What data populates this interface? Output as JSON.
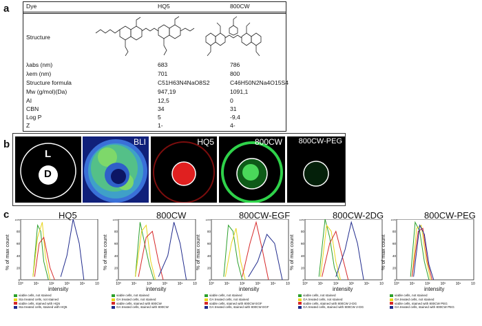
{
  "panel_labels": {
    "a": "a",
    "b": "b",
    "c": "c"
  },
  "table": {
    "headers": {
      "dye": "Dye",
      "col1": "HQ5",
      "col2": "800CW"
    },
    "structure_label": "Structure",
    "rows": [
      {
        "label": "λabs (nm)",
        "hq5": "683",
        "cw": "786"
      },
      {
        "label": "λem (nm)",
        "hq5": "701",
        "cw": "800"
      },
      {
        "label": "Structure formula",
        "hq5": "C51H63N4NaO8S2",
        "cw": "C46H50N2Na4O15S4"
      },
      {
        "label": "Mw (g/mol)(Da)",
        "hq5": "947,19",
        "cw": "1091,1"
      },
      {
        "label": "AI",
        "hq5": "12,5",
        "cw": "0"
      },
      {
        "label": "CBN",
        "hq5": "34",
        "cw": "31"
      },
      {
        "label": "Log P",
        "hq5": "5",
        "cw": "-9,4"
      },
      {
        "label": "Z",
        "hq5": "1-",
        "cw": "4-"
      }
    ]
  },
  "panel_b": {
    "schematic": {
      "outer": "L",
      "inner": "D"
    },
    "titles": [
      "BLI",
      "HQ5",
      "800CW",
      "800CW-PEG"
    ]
  },
  "panel_c": {
    "ylabel": "% of max count",
    "xlabel": "intensity",
    "tick_labels": {
      "y": [
        "0",
        "20",
        "40",
        "60",
        "80",
        "100"
      ],
      "x": [
        "10⁰",
        "10¹",
        "10²",
        "10³",
        "10⁴",
        "10⁵"
      ]
    },
    "plots": [
      {
        "title": "HQ5",
        "legend": [
          "viable cells, not stained",
          "Sta treated cells, not stained",
          "viable cells, stained with HQ5",
          "Sta treated cells, stained with HQ5"
        ]
      },
      {
        "title": "800CW",
        "legend": [
          "viable cells, not stained",
          "GA treated cells, not stained",
          "viable cells, stained with 800CW",
          "GA treated cells, stained with 800CW"
        ]
      },
      {
        "title": "800CW-EGF",
        "legend": [
          "viable cells, not stained",
          "GA treated cells, not stained",
          "viable cells, stained with 800CW EGF",
          "GA treated cells, stained with 800CW EGF"
        ]
      },
      {
        "title": "800CW-2DG",
        "legend": [
          "viable cells, not stained",
          "GA treated cells, not stained",
          "viable cells, stained with 800CW 2-DG",
          "GA treated cells, stained with 800CW 2-DG"
        ]
      },
      {
        "title": "800CW-PEG",
        "legend": [
          "viable cells, not stained",
          "GA treated cells, not stained",
          "viable cells, stained with 800CW PEG",
          "GA treated cells, stained with 800CW PEG"
        ]
      }
    ],
    "legend_colors": [
      "#2ca02c",
      "#e8d51a",
      "#d62728",
      "#1f2a8c"
    ]
  },
  "chart_data": {
    "type": "line",
    "note_axes": "log10 intensity (x), % of max count (y)",
    "ylim": [
      0,
      100
    ],
    "xlim": [
      0,
      5
    ],
    "charts": [
      {
        "title": "HQ5",
        "series": [
          {
            "name": "viable cells, not stained",
            "x": [
              0.8,
              1.1,
              1.3,
              1.5,
              1.8
            ],
            "y": [
              5,
              90,
              80,
              30,
              0
            ]
          },
          {
            "name": "Sta treated cells, not stained",
            "x": [
              0.8,
              1.1,
              1.4,
              1.6,
              1.9
            ],
            "y": [
              5,
              70,
              95,
              40,
              0
            ]
          },
          {
            "name": "viable cells, stained with HQ5",
            "x": [
              0.9,
              1.2,
              1.5,
              1.9,
              2.2
            ],
            "y": [
              5,
              60,
              70,
              20,
              0
            ]
          },
          {
            "name": "Sta treated cells, stained with HQ5",
            "x": [
              2.6,
              3.0,
              3.4,
              3.8,
              4.1
            ],
            "y": [
              5,
              40,
              100,
              60,
              0
            ]
          }
        ]
      },
      {
        "title": "800CW",
        "series": [
          {
            "name": "viable cells, not stained",
            "x": [
              1.1,
              1.4,
              1.7,
              2.0,
              2.3
            ],
            "y": [
              5,
              95,
              60,
              25,
              0
            ]
          },
          {
            "name": "GA treated cells, not stained",
            "x": [
              1.1,
              1.5,
              1.8,
              2.1,
              2.4
            ],
            "y": [
              5,
              80,
              90,
              30,
              0
            ]
          },
          {
            "name": "viable cells, stained with 800CW",
            "x": [
              1.3,
              1.8,
              2.2,
              2.6,
              2.9
            ],
            "y": [
              5,
              70,
              80,
              30,
              0
            ]
          },
          {
            "name": "GA treated cells, stained with 800CW",
            "x": [
              2.6,
              3.2,
              3.6,
              4.0,
              4.4
            ],
            "y": [
              5,
              40,
              95,
              60,
              0
            ]
          }
        ]
      },
      {
        "title": "800CW-EGF",
        "series": [
          {
            "name": "viable cells, not stained",
            "x": [
              0.8,
              1.1,
              1.4,
              1.7,
              2.0
            ],
            "y": [
              5,
              90,
              80,
              30,
              0
            ]
          },
          {
            "name": "GA treated cells, not stained",
            "x": [
              0.9,
              1.3,
              1.6,
              1.9,
              2.2
            ],
            "y": [
              5,
              60,
              85,
              30,
              0
            ]
          },
          {
            "name": "viable cells, stained with 800CW EGF",
            "x": [
              2.0,
              2.5,
              2.9,
              3.3,
              3.7
            ],
            "y": [
              5,
              60,
              95,
              50,
              0
            ]
          },
          {
            "name": "GA treated cells, stained with 800CW EGF",
            "x": [
              2.4,
              3.0,
              3.6,
              4.1,
              4.6
            ],
            "y": [
              5,
              30,
              75,
              60,
              0
            ]
          }
        ]
      },
      {
        "title": "800CW-2DG",
        "series": [
          {
            "name": "viable cells, not stained",
            "x": [
              0.9,
              1.3,
              1.6,
              1.9,
              2.2
            ],
            "y": [
              5,
              100,
              70,
              20,
              0
            ]
          },
          {
            "name": "GA treated cells, not stained",
            "x": [
              1.0,
              1.4,
              1.7,
              2.0,
              2.3
            ],
            "y": [
              5,
              90,
              80,
              30,
              0
            ]
          },
          {
            "name": "viable cells, stained with 800CW 2-DG",
            "x": [
              1.1,
              1.6,
              2.0,
              2.4,
              2.8
            ],
            "y": [
              5,
              60,
              80,
              40,
              0
            ]
          },
          {
            "name": "GA treated cells, stained with 800CW 2-DG",
            "x": [
              2.0,
              2.6,
              3.0,
              3.4,
              3.8
            ],
            "y": [
              5,
              50,
              95,
              60,
              0
            ]
          }
        ]
      },
      {
        "title": "800CW-PEG",
        "series": [
          {
            "name": "viable cells, not stained",
            "x": [
              0.9,
              1.2,
              1.5,
              1.8,
              2.1
            ],
            "y": [
              5,
              95,
              80,
              30,
              0
            ]
          },
          {
            "name": "GA treated cells, not stained",
            "x": [
              1.0,
              1.3,
              1.6,
              1.9,
              2.2
            ],
            "y": [
              5,
              85,
              90,
              35,
              0
            ]
          },
          {
            "name": "viable cells, stained with 800CW PEG",
            "x": [
              1.0,
              1.4,
              1.7,
              2.0,
              2.3
            ],
            "y": [
              5,
              80,
              85,
              30,
              0
            ]
          },
          {
            "name": "GA treated cells, stained with 800CW PEG",
            "x": [
              1.1,
              1.5,
              1.8,
              2.1,
              2.4
            ],
            "y": [
              5,
              90,
              75,
              25,
              0
            ]
          }
        ]
      }
    ]
  }
}
